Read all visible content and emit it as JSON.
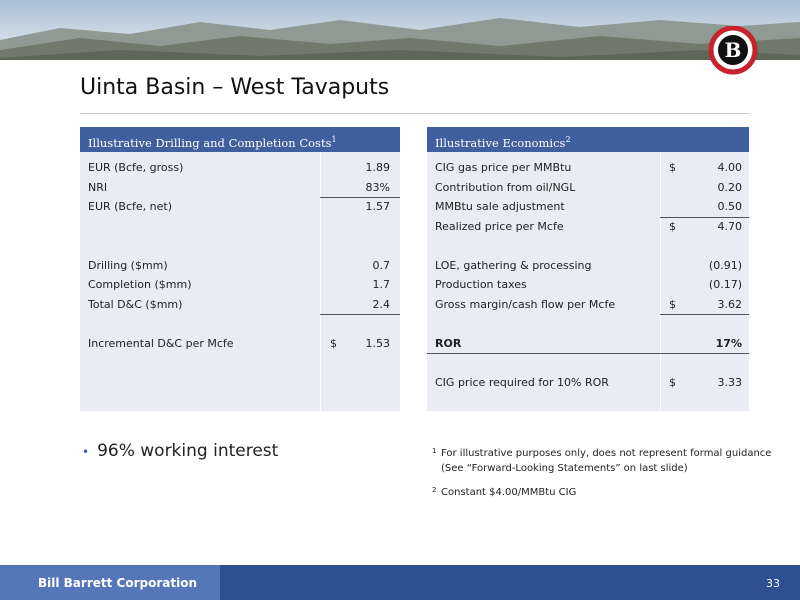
{
  "header": {
    "title": "Uinta Basin – West Tavaputs",
    "logo": "B"
  },
  "left_table": {
    "title": "Illustrative Drilling and Completion Costs",
    "title_note": "1",
    "rows": [
      {
        "label": "EUR (Bcfe, gross)",
        "value": "1.89"
      },
      {
        "label": "NRI",
        "value": "83%"
      },
      {
        "label": "EUR (Bcfe, net)",
        "value": "1.57"
      },
      {
        "label": "Drilling ($mm)",
        "value": "0.7"
      },
      {
        "label": "Completion ($mm)",
        "value": "1.7"
      },
      {
        "label": "Total D&C ($mm)",
        "value": "2.4"
      },
      {
        "label": "Incremental D&C per Mcfe",
        "currency": "$",
        "value": "1.53"
      }
    ]
  },
  "right_table": {
    "title": "Illustrative Economics",
    "title_note": "2",
    "rows": [
      {
        "label": "CIG gas price per MMBtu",
        "currency": "$",
        "value": "4.00"
      },
      {
        "label": "Contribution from oil/NGL",
        "value": "0.20"
      },
      {
        "label": "MMBtu sale adjustment",
        "value": "0.50"
      },
      {
        "label": "Realized price per Mcfe",
        "currency": "$",
        "value": "4.70"
      },
      {
        "label": "LOE, gathering & processing",
        "value": "(0.91)"
      },
      {
        "label": "Production taxes",
        "value": "(0.17)"
      },
      {
        "label": "Gross margin/cash flow per Mcfe",
        "currency": "$",
        "value": "3.62"
      },
      {
        "label": "ROR",
        "value": "17%"
      },
      {
        "label": "CIG price required for 10% ROR",
        "currency": "$",
        "value": "3.33"
      }
    ]
  },
  "bullets": [
    "96% working interest"
  ],
  "footnotes": [
    {
      "marker": "1",
      "lines": [
        "For illustrative purposes only, does not represent formal guidance",
        "(See “Forward-Looking Statements” on last slide)"
      ]
    },
    {
      "marker": "2",
      "lines": [
        "Constant $4.00/MMBtu CIG"
      ]
    }
  ],
  "footer": {
    "company": "Bill Barrett Corporation",
    "page": "33"
  }
}
